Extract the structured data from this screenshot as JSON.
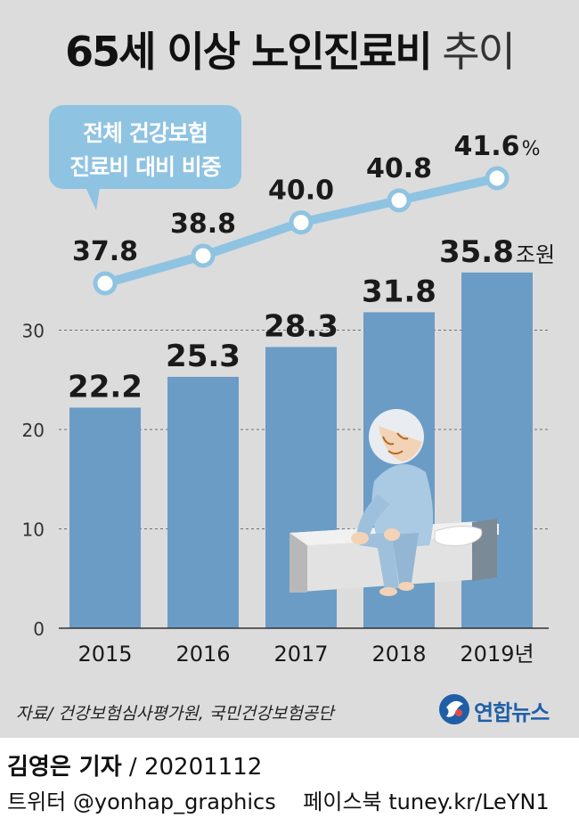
{
  "title": {
    "bold": "65세 이상 노인진료비",
    "light": "추이"
  },
  "callout": {
    "line1": "전체 건강보험",
    "line2": "진료비 대비 비중"
  },
  "chart_data": {
    "type": "bar",
    "categories": [
      "2015",
      "2016",
      "2017",
      "2018",
      "2019년"
    ],
    "series": [
      {
        "values": [
          22.2,
          25.3,
          28.3,
          31.8,
          35.8
        ],
        "value_labels": [
          "22.2",
          "25.3",
          "28.3",
          "31.8",
          "35.8"
        ],
        "last_unit": "조원",
        "color": "#6b9cc6"
      }
    ],
    "line_series": {
      "values": [
        37.8,
        38.8,
        40.0,
        40.8,
        41.6
      ],
      "value_labels": [
        "37.8",
        "38.8",
        "40.0",
        "40.8",
        "41.6"
      ],
      "last_unit": "%",
      "color": "#8fc3e2",
      "axis": "secondary"
    },
    "y_ticks": [
      "0",
      "10",
      "20",
      "30"
    ],
    "ylim": [
      0,
      40
    ],
    "grid": true,
    "gridline_style": "dashed"
  },
  "source": "자료/ 건강보험심사평가원, 국민건강보험공단",
  "brand": "연합뉴스",
  "reporter": {
    "name": "김영은 기자",
    "date": "20201112"
  },
  "social": {
    "twitter": "트위터 @yonhap_graphics",
    "facebook": "페이스북 tuney.kr/LeYN1"
  },
  "colors": {
    "panel_bg": "#dcdcdc",
    "bar": "#6b9cc6",
    "line": "#8fc3e2",
    "brand_blue": "#1f5fa8"
  }
}
